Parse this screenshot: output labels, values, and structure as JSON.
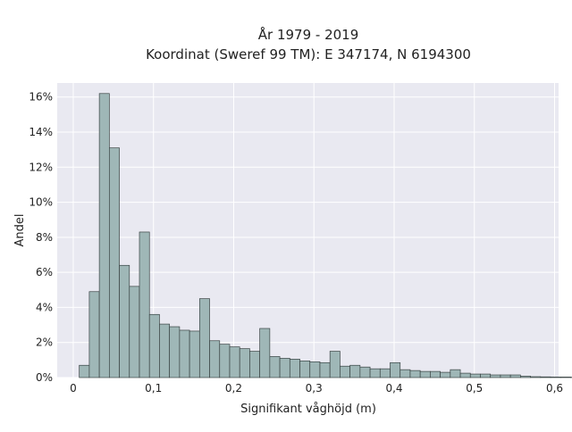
{
  "chart_data": {
    "type": "bar",
    "title": "År 1979 - 2019",
    "subtitle": "Koordinat (Sweref 99 TM): E 347174, N 6194300",
    "xlabel": "Signifikant våghöjd (m)",
    "ylabel": "Andel",
    "xlim": [
      -0.02,
      0.605
    ],
    "ylim": [
      0,
      16.8
    ],
    "bin_width": 0.0125,
    "bin_start": 0.0075,
    "values": [
      0.7,
      4.9,
      16.2,
      13.1,
      6.4,
      5.2,
      8.3,
      3.6,
      3.05,
      2.9,
      2.7,
      2.65,
      4.5,
      2.1,
      1.9,
      1.75,
      1.65,
      1.5,
      2.8,
      1.2,
      1.1,
      1.05,
      0.95,
      0.9,
      0.85,
      1.5,
      0.65,
      0.7,
      0.6,
      0.5,
      0.5,
      0.85,
      0.45,
      0.4,
      0.35,
      0.35,
      0.3,
      0.45,
      0.25,
      0.2,
      0.2,
      0.15,
      0.15,
      0.15,
      0.08,
      0.05,
      0.04,
      0.03,
      0.03,
      0.02,
      0.02,
      0.01
    ],
    "x_ticks": [
      {
        "value": 0,
        "label": "0"
      },
      {
        "value": 0.1,
        "label": "0,1"
      },
      {
        "value": 0.2,
        "label": "0,2"
      },
      {
        "value": 0.3,
        "label": "0,3"
      },
      {
        "value": 0.4,
        "label": "0,4"
      },
      {
        "value": 0.5,
        "label": "0,5"
      },
      {
        "value": 0.6,
        "label": "0,6"
      }
    ],
    "y_ticks": [
      {
        "value": 0,
        "label": "0%"
      },
      {
        "value": 2,
        "label": "2%"
      },
      {
        "value": 4,
        "label": "4%"
      },
      {
        "value": 6,
        "label": "6%"
      },
      {
        "value": 8,
        "label": "8%"
      },
      {
        "value": 10,
        "label": "10%"
      },
      {
        "value": 12,
        "label": "12%"
      },
      {
        "value": 14,
        "label": "14%"
      },
      {
        "value": 16,
        "label": "16%"
      }
    ],
    "grid": true,
    "colors": {
      "bar_fill": "#9fb7b7",
      "bar_stroke": "#3a4444",
      "plot_background": "#e9e9f1",
      "grid": "#ffffff"
    }
  }
}
